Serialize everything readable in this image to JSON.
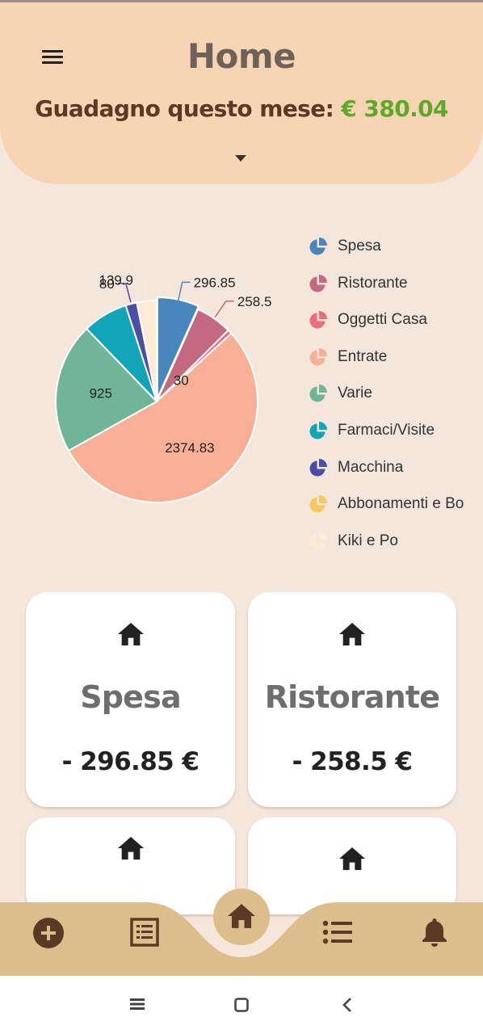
{
  "header": {
    "title": "Home",
    "earning_label": "Guadagno questo mese:",
    "earning_amount": "€ 380.04",
    "earning_color": "#5ea82a"
  },
  "icons": {
    "menu": "menu-icon",
    "dropdown": "caret-down-icon",
    "category": "home-icon",
    "legend": "pie-chart-icon",
    "nav": [
      "add-circle-icon",
      "receipt-list-icon",
      "home-icon",
      "list-icon",
      "bell-icon"
    ],
    "system": [
      "recent-apps-icon",
      "home-square-icon",
      "back-chevron-icon"
    ]
  },
  "chart_data": {
    "type": "pie",
    "categories": [
      "Spesa",
      "Ristorante",
      "Oggetti Casa",
      "Entrate",
      "Varie",
      "Farmaci/Visite",
      "Macchina",
      "Abbonamenti e Bo",
      "Kiki e Po"
    ],
    "values": [
      296.85,
      258.5,
      30,
      2374.83,
      925,
      320,
      80,
      0,
      139.9
    ],
    "data_labels": [
      "296.85",
      "258.5",
      "30",
      "2374.83",
      "925",
      "",
      "80",
      "",
      "139.9"
    ],
    "colors": [
      "#4a86be",
      "#c4697f",
      "#ee6c78",
      "#f7b096",
      "#6fb596",
      "#10a5b8",
      "#4c4da6",
      "#f6c85f",
      "#fdebd6"
    ],
    "legend": "right"
  },
  "cards": [
    {
      "title": "Spesa",
      "amount": "- 296.85 €"
    },
    {
      "title": "Ristorante",
      "amount": "- 258.5 €"
    },
    {
      "title": "",
      "amount": ""
    },
    {
      "title": "",
      "amount": ""
    }
  ],
  "colors": {
    "background": "#f5e6dc",
    "header": "#f7d4b4",
    "bottom_bar": "#dcbd8c",
    "nav_icon": "#5b3a25"
  }
}
